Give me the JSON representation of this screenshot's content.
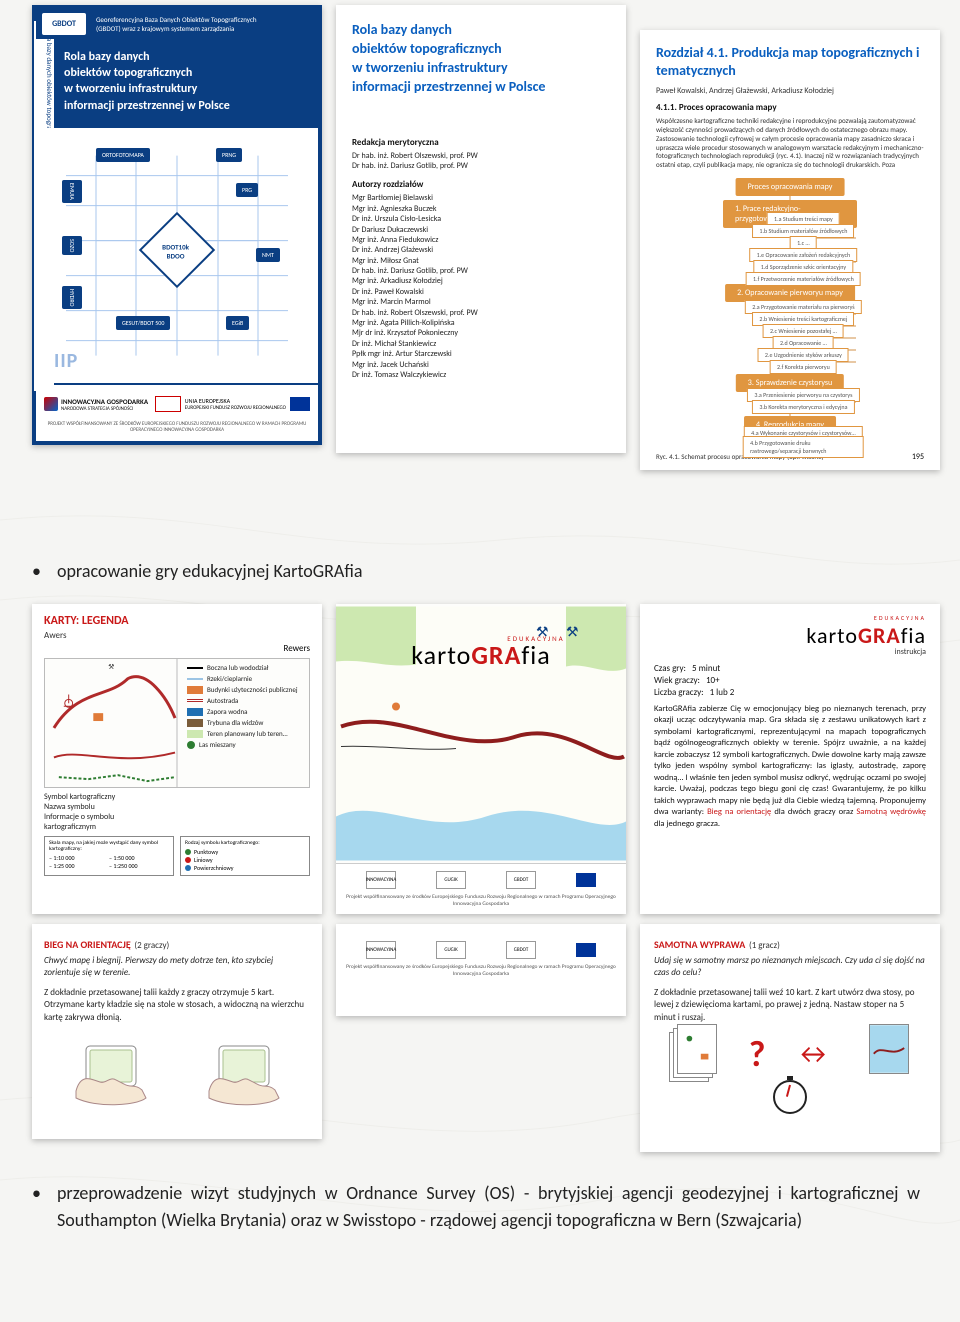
{
  "colors": {
    "blue_dark": "#0a3e82",
    "blue_link": "#0a5fbf",
    "red": "#c91818",
    "orange": "#e09640",
    "text": "#222222",
    "grid": "#d8d4cc",
    "bg": "#f5f5f3"
  },
  "panel1": {
    "logo": "GBDOT",
    "header_line1": "Georeferencyjna Baza Danych Obiektów Topograficznych",
    "header_line2": "(GBDOT) wraz z krajowym systemem zarządzania",
    "title": "Rola bazy danych\nobiektów topograficznych\nw tworzeniu infrastruktury\ninformacji przestrzennej w Polsce",
    "sidetext": "Rola bazy danych obiektów topograficznych w tworzeniu infrastruktury informacji przestrzennej w Polsce",
    "center_node": "BDOT10k\nBDOO",
    "nodes": {
      "top_left": "ORTOFOTOMAPA",
      "top_right": "PRNG",
      "mid_left": "EMUIA",
      "mid_right": "PRG",
      "low_left": "SOZO",
      "low_right": "NMT",
      "left3": "HYDRO",
      "bot_left": "GESUT/BDOT 500",
      "bot_right": "EGiB"
    },
    "iip": "IIP",
    "footer_logo1": "INNOWACYJNA GOSPODARKA",
    "footer_logo1_sub": "NARODOWA STRATEGIA SPÓJNOŚCI",
    "footer_logo2": "UNIA EUROPEJSKA",
    "footer_logo2_sub": "EUROPEJSKI FUNDUSZ ROZWOJU REGIONALNEGO",
    "footer_tiny": "PROJEKT WSPÓŁFINANSOWANY ZE ŚRODKÓW EUROPEJSKIEGO FUNDUSZU ROZWOJU REGIONALNEGO W RAMACH PROGRAMU OPERACYJNEGO INNOWACYJNA GOSPODARKA"
  },
  "panel2": {
    "title": "Rola bazy danych\nobiektów topograficznych\nw tworzeniu infrastruktury\ninformacji przestrzennej w Polsce",
    "sec1_h": "Redakcja merytoryczna",
    "sec1": [
      "Dr hab. inż. Robert Olszewski, prof. PW",
      "Dr hab. inż. Dariusz Gotlib, prof. PW"
    ],
    "sec2_h": "Autorzy rozdziałów",
    "sec2": [
      "Mgr Bartłomiej Bielawski",
      "Mgr inż. Agnieszka Buczek",
      "Dr inż. Urszula Cisło-Lesicka",
      "Dr Dariusz Dukaczewski",
      "Mgr inż. Anna Fiedukowicz",
      "Dr inż. Andrzej Głażewski",
      "Mgr inż. Miłosz Gnat",
      "Dr hab. inż. Dariusz Gotlib, prof. PW",
      "Mgr inż. Arkadiusz Kołodziej",
      "Dr inż. Paweł Kowalski",
      "Mgr inż. Marcin Marmol",
      "Dr hab. inż. Robert Olszewski, prof. PW",
      "Mgr inż. Agata Pillich-Kolipińska",
      "Mjr dr inż. Krzysztof Pokonieczny",
      "Dr inż. Michał Stankiewicz",
      "Ppłk mgr inż. Artur Starczewski",
      "Mgr inż. Jacek Uchański",
      "Dr inż. Tomasz Walczykiewicz"
    ]
  },
  "panel3": {
    "title": "Rozdział 4.1. Produkcja map topograficznych i tematycznych",
    "authors": "Paweł Kowalski, Andrzej Głażewski, Arkadiusz Kołodziej",
    "subsection": "4.1.1. Proces opracowania mapy",
    "body": "Współczesne kartograficzne techniki redakcyjne i reprodukcyjne pozwalają zautomatyzować większość czynności prowadzących od danych źródłowych do ostatecznego obrazu mapy. Zastosowanie technologii cyfrowej w całym procesie opracowania mapy zasadniczo skraca i upraszcza wiele procedur stosowanych w analogowym warsztacie redakcyjnym i mechaniczno-fotograficznych technologiach reprodukcji (ryc. 4.1). Inaczej niż w rozwiązaniach tradycyjnych ostatni etap, czyli publikacja mapy, nie ogranicza się do technologii drukarskich. Poza",
    "flow_top": "Proces opracowania mapy",
    "stages": [
      {
        "label": "1. Prace redakcyjno-przygotowawcze",
        "color": "#e09640"
      },
      {
        "label": "2. Opracowanie pierworyu mapy",
        "color": "#e09640"
      },
      {
        "label": "3. Sprawdzenie czystorysu",
        "color": "#e09640"
      },
      {
        "label": "4. Reprodukcja mapy",
        "color": "#e09640"
      }
    ],
    "steps": [
      "1.a Studium treści mapy",
      "1.b Studium materiałów źródłowych",
      "1.c …",
      "1.e Opracowanie założeń redakcyjnych",
      "1.d Sporządzenie szkic orientacyjny",
      "1.f Przetworzenie materiałów źródłowych",
      "2.a Przygotowanie materiału na pierworyś",
      "2.b Wniesienie treści kartograficznej",
      "2.c Wniesienie pozostałej …",
      "2.d Opracowanie …",
      "2.e Uzgodnienie styków arkuszy",
      "2.f Korekta pierworyu",
      "3.a Przeniesienie pierworyu na czystorys",
      "3.b Korekta merytoryczna i edycyjna",
      "4.a Wykonanie czystorysów i czystorysów…",
      "4.b Przygotowanie druku rastrowego/separacji barwnych"
    ],
    "caption": "Ryc. 4.1. Schemat procesu opracowania mapy (opr. własne)",
    "pagenum": "195"
  },
  "bullet1": "opracowanie gry edukacyjnej KartoGRAfia",
  "bullet2": "przeprowadzenie wizyt studyjnych w Ordnance Survey (OS) - brytyjskiej agencji geodezyjnej i kartograficznej w Southampton (Wielka Brytania) oraz w Swisstopo - rządowej agencji topograficzna w Bern (Szwajcaria)",
  "k1": {
    "title": "KARTY: LEGENDA",
    "awers": "Awers",
    "rewers": "Rewers",
    "legend_items": [
      {
        "label": "Boczna lub wododział",
        "color": "#000000",
        "kind": "line"
      },
      {
        "label": "Rzeki/cieplarnie",
        "color": "#9cc4e4",
        "kind": "line"
      },
      {
        "label": "Budynki użyteczności publicznej",
        "color": "#e07b39",
        "kind": "box"
      },
      {
        "label": "Autostrada",
        "color": "#b02a2a",
        "kind": "dline"
      },
      {
        "label": "Zapora wodna",
        "color": "#1f6fb2",
        "kind": "box"
      },
      {
        "label": "Trybuna dla widzów",
        "color": "#7a5c3a",
        "kind": "box"
      },
      {
        "label": "Teren planowany lub teren…",
        "color": "#cde8b0",
        "kind": "box"
      },
      {
        "label": "Las mieszany",
        "color": "#2e7d32",
        "kind": "circle"
      }
    ],
    "info_labels": {
      "symbol": "Symbol kartograficzny",
      "nazwa": "Nazwa symbolu",
      "info": "Informacje o symbolu kartograficznym"
    },
    "scalebox_h": "Skala mapy, na jakiej może wystąpić dany symbol kartograficzny:",
    "scales": [
      "– 1:10 000",
      "– 1:50 000",
      "– 1:25 000",
      "– 1:250 000"
    ],
    "kindbox_h": "Rodzaj symbolu kartograficznego:",
    "kinds": [
      {
        "label": "Punktowy",
        "color": "#2e7d32"
      },
      {
        "label": "Liniowy",
        "color": "#c91818"
      },
      {
        "label": "Powierzchniowy",
        "color": "#1f6fb2"
      }
    ]
  },
  "k2": {
    "logo_sup": "EDUKACYJNA",
    "logo_pre": "karto",
    "logo_red": "GRA",
    "logo_post": "fia",
    "footer_text": "Projekt współfinansowany ze środków Europejskiego Funduszu Rozwoju Regionalnego w ramach Programu Operacyjnego Innowacyjna Gospodarka",
    "logos": [
      "INNOWACYJNA",
      "GUGIK",
      "GBDOT",
      "UE"
    ],
    "map_colors": {
      "water": "#a7d8ee",
      "land": "#fdfdf7",
      "forest": "#cde8b0",
      "road": "#8e1d1d"
    }
  },
  "k3": {
    "logo_sup": "EDUKACYJNA",
    "logo_pre": "karto",
    "logo_red": "GRA",
    "logo_post": "fia",
    "instr": "instrukcja",
    "meta": [
      {
        "k": "Czas gry:",
        "v": "5 minut"
      },
      {
        "k": "Wiek graczy:",
        "v": "10+"
      },
      {
        "k": "Liczba graczy:",
        "v": "1 lub 2"
      }
    ],
    "body": "KartoGRAfia zabierze Cię w emocjonujący bieg po nieznanych terenach, przy okazji ucząc odczytywania map. Gra składa się z zestawu unikatowych kart z symbolami kartograficznymi, reprezentującymi na mapach topograficznych bądź ogólnogeograficznych obiekty w terenie. Spójrz uważnie, a na każdej karcie zobaczysz 12 symboli kartograficznych. Dwie dowolne karty mają zawsze tylko jeden wspólny symbol kartograficzny: las iglasty, autostradę, zaporę wodną… I właśnie ten jeden symbol musisz odkryć, wędrując oczami po swojej karcie. Uważaj, podczas tego biegu goni cię czas! Gwarantujemy, że po kilku takich wyprawach mapy nie będą już dla Ciebie wiedzą tajemną. Proponujemy dwa warianty: ",
    "red1": "Bieg na orientację",
    "body_mid": " dla dwóch graczy oraz ",
    "red2": "Samotną wędrówkę",
    "body_end": " dla jednego gracza."
  },
  "k4": {
    "title": "BIEG NA ORIENTACJĘ",
    "players": "(2 graczy)",
    "line1": "Chwyć mapę i biegnij. Pierwszy do mety dotrze ten, kto szybciej zorientuje się w terenie.",
    "line2": "Z dokładnie przetasowanej talii każdy z graczy otrzymuje 5 kart. Otrzymane karty kładzie się na stole w stosach, a widoczną na wierzchu kartę zakrywa dłonią."
  },
  "k6": {
    "title": "SAMOTNA WYPRAWA",
    "players": "(1 gracz)",
    "line1": "Udaj się w samotny marsz po nieznanych miejscach. Czy uda ci się dojść na czas do celu?",
    "line2": "Z dokładnie przetasowanej talii weź 10 kart. Z kart utwórz dwa stosy, po lewej z dziewięcioma kartami, po prawej z jedną. Nastaw stoper na 5 minut i ruszaj."
  }
}
